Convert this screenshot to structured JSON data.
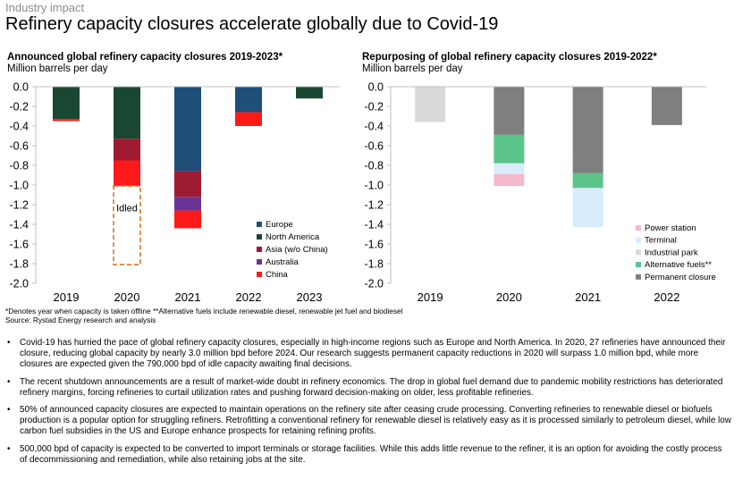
{
  "kicker": "Industry impact",
  "title": "Refinery capacity closures accelerate globally due to Covid-19",
  "chart_data": [
    {
      "type": "bar",
      "stacked": true,
      "title": "Announced global refinery capacity closures 2019-2023*",
      "ylabel": "Million barrels per day",
      "ylim": [
        -2.0,
        0.0
      ],
      "yticks": [
        "0.0",
        "-0.2",
        "-0.4",
        "-0.6",
        "-0.8",
        "-1.0",
        "-1.2",
        "-1.4",
        "-1.6",
        "-1.8",
        "-2.0"
      ],
      "categories": [
        "2019",
        "2020",
        "2021",
        "2022",
        "2023"
      ],
      "series": [
        {
          "name": "Europe",
          "color": "#1f4e79",
          "values": [
            0,
            0,
            -0.86,
            -0.26,
            0
          ]
        },
        {
          "name": "North America",
          "color": "#1a4731",
          "values": [
            -0.33,
            -0.53,
            0,
            0,
            -0.12
          ]
        },
        {
          "name": "Asia (w/o China)",
          "color": "#9e1b32",
          "values": [
            0,
            -0.22,
            -0.26,
            0,
            0
          ]
        },
        {
          "name": "Australia",
          "color": "#6a3496",
          "values": [
            0,
            0,
            -0.14,
            0,
            0
          ]
        },
        {
          "name": "China",
          "color": "#ff1a1a",
          "values": [
            -0.02,
            -0.26,
            -0.18,
            -0.14,
            0
          ]
        }
      ],
      "annotation": {
        "label": "Idled",
        "category": "2020",
        "from": -1.01,
        "to": -1.81,
        "color": "#d9742b"
      }
    },
    {
      "type": "bar",
      "stacked": true,
      "title": "Repurposing of global refinery capacity closures 2019-2022*",
      "ylabel": "Million barrels per day",
      "ylim": [
        -2.0,
        0.0
      ],
      "yticks": [
        "0.0",
        "-0.2",
        "-0.4",
        "-0.6",
        "-0.8",
        "-1.0",
        "-1.2",
        "-1.4",
        "-1.6",
        "-1.8",
        "-2.0"
      ],
      "categories": [
        "2019",
        "2020",
        "2021",
        "2022"
      ],
      "series": [
        {
          "name": "Permanent closure",
          "color": "#7f7f7f",
          "values": [
            0,
            -0.49,
            -0.88,
            -0.39
          ]
        },
        {
          "name": "Alternative fuels**",
          "color": "#5ac48a",
          "values": [
            0,
            -0.29,
            -0.15,
            0
          ]
        },
        {
          "name": "Industrial park",
          "color": "#d9d9d9",
          "values": [
            -0.36,
            0,
            0,
            0
          ]
        },
        {
          "name": "Terminal",
          "color": "#d8ecfb",
          "values": [
            0,
            -0.11,
            -0.4,
            0
          ]
        },
        {
          "name": "Power station",
          "color": "#f5b8cc",
          "values": [
            0,
            -0.12,
            0,
            0
          ]
        }
      ]
    }
  ],
  "footnote1": "*Denotes year when capacity is taken offline **Alternative fuels include renewable diesel, renewable jet fuel and biodiesel",
  "footnote2": "Source: Rystad Energy research and analysis",
  "bullets": [
    "Covid-19 has hurried the pace of global refinery capacity closures, especially in high-income regions such as Europe and North America. In 2020, 27 refineries have announced their closure, reducing global capacity by nearly 3.0 million bpd before 2024. Our research suggests permanent capacity reductions in 2020 will surpass 1.0 million bpd, while more closures are expected given the 790,000 bpd of idle capacity awaiting final decisions.",
    "The recent shutdown announcements are a result of market-wide doubt in refinery economics. The drop in global fuel demand due to pandemic mobility restrictions has deteriorated refinery margins, forcing refineries to curtail utilization rates and pushing forward decision-making on older, less profitable refineries.",
    "50% of announced capacity closures are expected to maintain operations on the refinery site after ceasing crude processing. Converting refineries to renewable diesel or biofuels production is a popular option for struggling refiners. Retrofitting a conventional refinery for renewable diesel is relatively easy as it is processed similarly to petroleum diesel, while low carbon fuel subsidies in the US and Europe enhance prospects for retaining refining profits.",
    "500,000 bpd of capacity is expected to be converted to import terminals or storage facilities. While this adds little revenue to the refiner, it is an option for avoiding the costly process of decommissioning and remediation, while also retaining jobs at the site."
  ]
}
